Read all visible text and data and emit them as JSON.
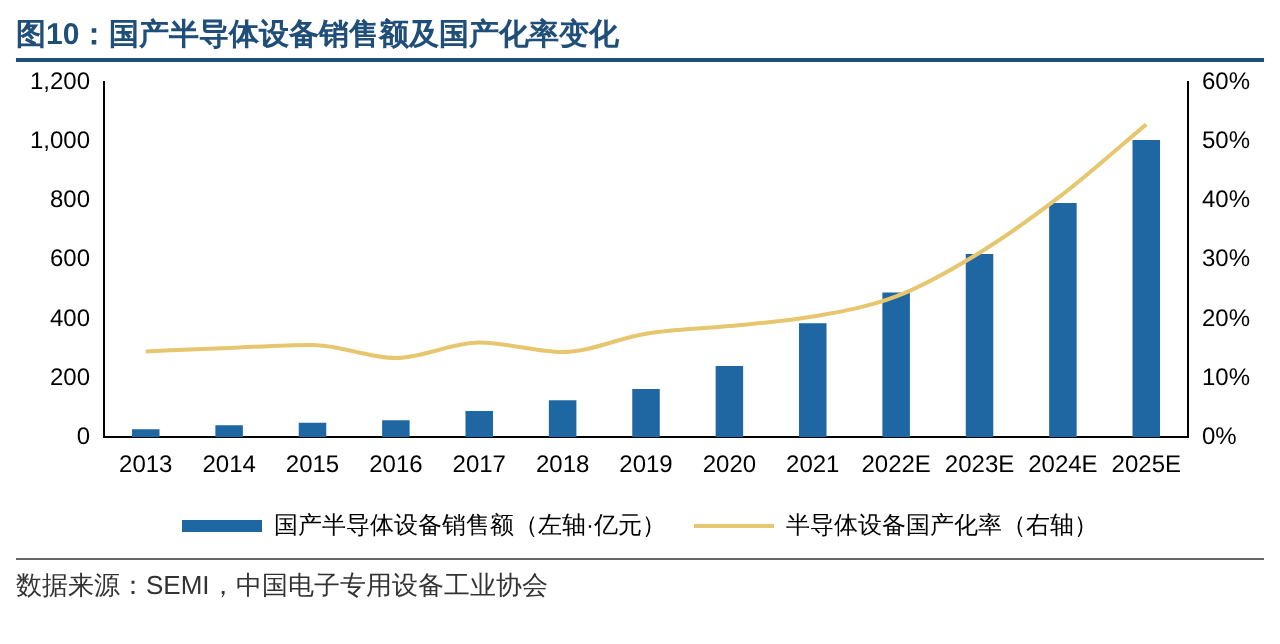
{
  "chart_data": {
    "type": "bar",
    "title": "图10：国产半导体设备销售额及国产化率变化",
    "categories": [
      "2013",
      "2014",
      "2015",
      "2016",
      "2017",
      "2018",
      "2019",
      "2020",
      "2021",
      "2022E",
      "2023E",
      "2024E",
      "2025E"
    ],
    "series": [
      {
        "name": "国产半导体设备销售额（左轴·亿元）",
        "color": "#1f67a3",
        "values": [
          27,
          40,
          49,
          57,
          89,
          125,
          163,
          241,
          385,
          489,
          620,
          792,
          1005
        ]
      },
      {
        "name": "半导体设备国产化率（右轴）",
        "type": "line",
        "axis": "y2",
        "color": "#e6c66e",
        "values": [
          14.5,
          15.1,
          15.6,
          13.4,
          16.0,
          14.4,
          17.5,
          18.8,
          20.4,
          23.8,
          31.2,
          41.1,
          52.9
        ]
      }
    ],
    "ylim": [
      0,
      1200
    ],
    "yticks": [
      0,
      {
        "value": 200,
        "label": "200"
      },
      {
        "value": 400,
        "label": "400"
      },
      {
        "value": 600,
        "label": "600"
      },
      {
        "value": 800,
        "label": "800"
      },
      {
        "value": 1000,
        "label": "1,000"
      },
      {
        "value": 1200,
        "label": "1,200"
      }
    ],
    "y2lim": [
      0,
      60
    ],
    "y2ticks": [
      {
        "value": 0,
        "label": "0%"
      },
      {
        "value": 10,
        "label": "10%"
      },
      {
        "value": 20,
        "label": "20%"
      },
      {
        "value": 30,
        "label": "30%"
      },
      {
        "value": 40,
        "label": "40%"
      },
      {
        "value": 50,
        "label": "50%"
      },
      {
        "value": 60,
        "label": "60%"
      }
    ],
    "grid": false,
    "legend": "bottom",
    "annotations": [
      "数据来源：SEMI，中国电子专用设备工业协会"
    ]
  }
}
